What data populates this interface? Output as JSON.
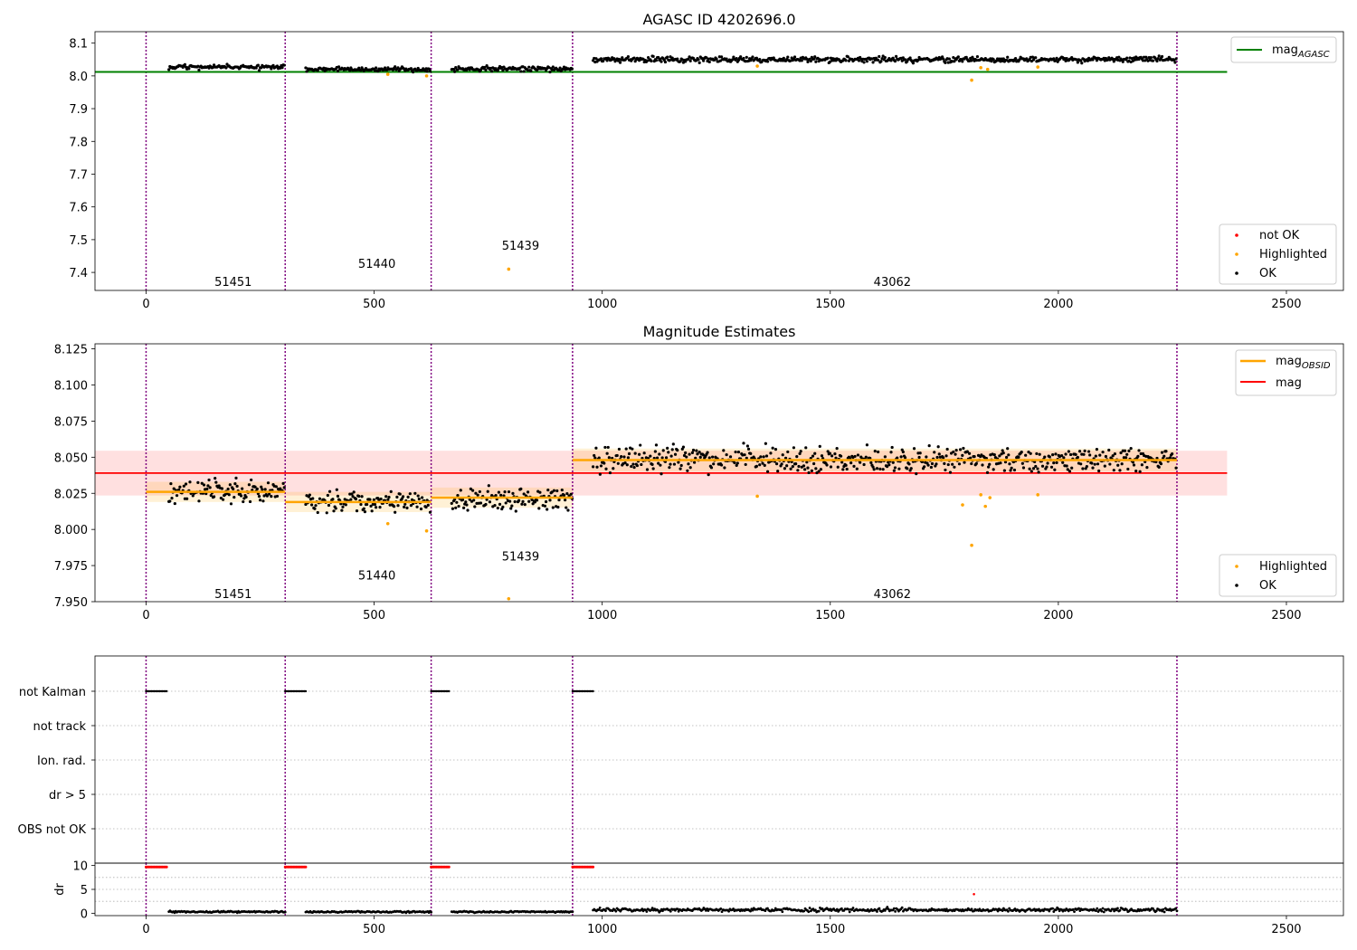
{
  "figure": {
    "x_ticks": [
      0,
      500,
      1000,
      1500,
      2000,
      2500
    ],
    "x_range": [
      -112,
      2625
    ],
    "obsid_boundaries": [
      0,
      305,
      625,
      935,
      2260
    ],
    "colors": {
      "ok": "#000000",
      "highlighted": "#ffa500",
      "not_ok": "#ff0000",
      "agasc_line": "#008000",
      "mag_line": "#ff0000",
      "obsid_line": "#ffa500",
      "boundary": "#800080"
    }
  },
  "chart_data": [
    {
      "type": "scatter",
      "title": "AGASC ID 4202696.0",
      "ylim": [
        7.345,
        8.135
      ],
      "y_ticks": [
        7.4,
        7.5,
        7.6,
        7.7,
        7.8,
        7.9,
        8.0,
        8.1
      ],
      "y_tick_labels": [
        "7.4",
        "7.5",
        "7.6",
        "7.7",
        "7.8",
        "7.9",
        "8.0",
        "8.1"
      ],
      "agasc_mag": 8.012,
      "agasc_line_x": [
        -112,
        2370
      ],
      "segments": [
        {
          "x": [
            50,
            305
          ],
          "center": 8.027,
          "spread": 0.008
        },
        {
          "x": [
            350,
            625
          ],
          "center": 8.02,
          "spread": 0.007
        },
        {
          "x": [
            670,
            935
          ],
          "center": 8.022,
          "spread": 0.008
        },
        {
          "x": [
            980,
            2260
          ],
          "center": 8.05,
          "spread": 0.009
        }
      ],
      "highlighted_points": [
        {
          "x": 530,
          "y": 8.005
        },
        {
          "x": 615,
          "y": 8.0
        },
        {
          "x": 795,
          "y": 7.41
        },
        {
          "x": 1340,
          "y": 8.03
        },
        {
          "x": 1810,
          "y": 7.987
        },
        {
          "x": 1830,
          "y": 8.025
        },
        {
          "x": 1845,
          "y": 8.02
        },
        {
          "x": 1955,
          "y": 8.027
        }
      ],
      "obsid_labels": [
        {
          "text": "51451",
          "x": 150,
          "y": 7.37
        },
        {
          "text": "51440",
          "x": 465,
          "y": 7.425
        },
        {
          "text": "51439",
          "x": 780,
          "y": 7.48
        },
        {
          "text": "43062",
          "x": 1595,
          "y": 7.37
        }
      ],
      "legend_top": {
        "line_label": "mag",
        "line_subscript": "AGASC"
      },
      "legend_bottom": [
        "not OK",
        "Highlighted",
        "OK"
      ]
    },
    {
      "type": "scatter",
      "title": "Magnitude Estimates",
      "ylim": [
        7.95,
        8.1285
      ],
      "y_ticks": [
        7.95,
        7.975,
        8.0,
        8.025,
        8.05,
        8.075,
        8.1,
        8.125
      ],
      "y_tick_labels": [
        "7.950",
        "7.975",
        "8.000",
        "8.025",
        "8.050",
        "8.075",
        "8.100",
        "8.125"
      ],
      "mag": 8.039,
      "mag_band": [
        8.0235,
        8.0545
      ],
      "mag_line_x": [
        -112,
        2370
      ],
      "obsid_mags": [
        {
          "x": [
            0,
            305
          ],
          "value": 8.026,
          "band": [
            8.019,
            8.033
          ]
        },
        {
          "x": [
            305,
            625
          ],
          "value": 8.019,
          "band": [
            8.012,
            8.026
          ]
        },
        {
          "x": [
            625,
            935
          ],
          "value": 8.022,
          "band": [
            8.015,
            8.029
          ]
        },
        {
          "x": [
            935,
            2260
          ],
          "value": 8.048,
          "band": [
            8.04,
            8.056
          ]
        }
      ],
      "segments": [
        {
          "x": [
            50,
            305
          ],
          "center": 8.026,
          "spread": 0.008
        },
        {
          "x": [
            350,
            625
          ],
          "center": 8.019,
          "spread": 0.008
        },
        {
          "x": [
            670,
            935
          ],
          "center": 8.021,
          "spread": 0.008
        },
        {
          "x": [
            980,
            2260
          ],
          "center": 8.048,
          "spread": 0.009
        }
      ],
      "highlighted_points": [
        {
          "x": 530,
          "y": 8.004
        },
        {
          "x": 615,
          "y": 7.999
        },
        {
          "x": 795,
          "y": 7.952
        },
        {
          "x": 1340,
          "y": 8.023
        },
        {
          "x": 1790,
          "y": 8.017
        },
        {
          "x": 1810,
          "y": 7.989
        },
        {
          "x": 1830,
          "y": 8.024
        },
        {
          "x": 1840,
          "y": 8.016
        },
        {
          "x": 1850,
          "y": 8.022
        },
        {
          "x": 1955,
          "y": 8.024
        }
      ],
      "obsid_labels": [
        {
          "text": "51451",
          "x": 150,
          "y": 7.955
        },
        {
          "text": "51440",
          "x": 465,
          "y": 7.968
        },
        {
          "text": "51439",
          "x": 780,
          "y": 7.981
        },
        {
          "text": "43062",
          "x": 1595,
          "y": 7.955
        }
      ],
      "legend_top": [
        {
          "label": "mag",
          "subscript": "OBSID"
        },
        {
          "label": "mag",
          "subscript": ""
        }
      ],
      "legend_bottom": [
        "Highlighted",
        "OK"
      ]
    },
    {
      "type": "scatter",
      "categories": [
        "not Kalman",
        "not track",
        "Ion. rad.",
        "dr > 5",
        "OBS not OK"
      ],
      "flag_runs": [
        {
          "category": "not Kalman",
          "x": [
            0,
            45
          ]
        },
        {
          "category": "not Kalman",
          "x": [
            305,
            350
          ]
        },
        {
          "category": "not Kalman",
          "x": [
            625,
            665
          ]
        },
        {
          "category": "not Kalman",
          "x": [
            935,
            980
          ]
        }
      ]
    },
    {
      "type": "scatter",
      "ylabel": "dr",
      "ylim": [
        -0.5,
        10.5
      ],
      "y_ticks": [
        0,
        5,
        10
      ],
      "y_tick_labels": [
        "0",
        "5",
        "10"
      ],
      "red_runs": [
        {
          "x": [
            0,
            45
          ],
          "y": 9.7
        },
        {
          "x": [
            305,
            350
          ],
          "y": 9.7
        },
        {
          "x": [
            625,
            665
          ],
          "y": 9.7
        },
        {
          "x": [
            935,
            980
          ],
          "y": 9.7
        }
      ],
      "red_points": [
        {
          "x": 1815,
          "y": 4.0
        }
      ],
      "segments": [
        {
          "x": [
            50,
            305
          ],
          "center": 0.3
        },
        {
          "x": [
            350,
            625
          ],
          "center": 0.3
        },
        {
          "x": [
            670,
            935
          ],
          "center": 0.3
        },
        {
          "x": [
            980,
            2260
          ],
          "center": 0.7
        }
      ]
    }
  ]
}
